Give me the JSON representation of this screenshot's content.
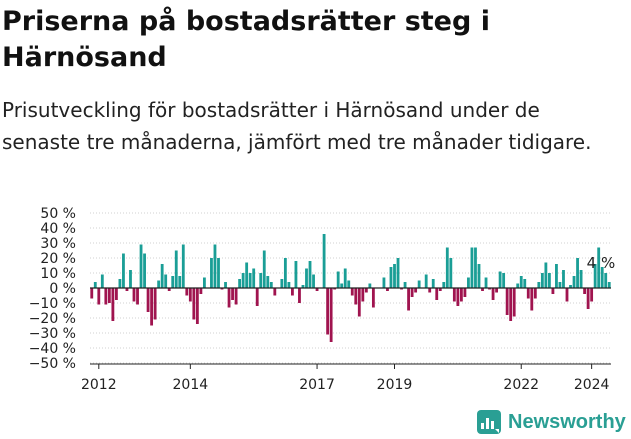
{
  "title": "Priserna på bostadsrätter steg i Härnösand",
  "subtitle": "Prisutveckling för bostadsrätter i Härnösand under de senaste tre månaderna, jämfört med tre månader tidigare.",
  "brand": "Newsworthy",
  "colors": {
    "positive": "#1a9e96",
    "negative": "#a0144f",
    "axis": "#222222",
    "grid": "#d0d0d0"
  },
  "chart_data": {
    "type": "bar",
    "ylim": [
      -50,
      50
    ],
    "yticks": [
      -50,
      -40,
      -30,
      -20,
      -10,
      0,
      10,
      20,
      30,
      40,
      50
    ],
    "yticklabels": [
      "−50 %",
      "−40 %",
      "−30 %",
      "−20 %",
      "−10 %",
      "0 %",
      "10 %",
      "20 %",
      "30 %",
      "40 %",
      "50 %"
    ],
    "xticklabels": [
      "2012",
      "2014",
      "2017",
      "2019",
      "2022",
      "2024"
    ],
    "xtick_index": [
      2,
      28,
      64,
      86,
      122,
      142
    ],
    "last_label": "4 %",
    "x_start": "2011-11",
    "x_end": "2024-11",
    "values": [
      -7,
      4,
      -11,
      9,
      -11,
      -10,
      -22,
      -8,
      6,
      23,
      -2,
      12,
      -9,
      -11,
      29,
      23,
      -16,
      -25,
      -21,
      5,
      16,
      9,
      -2,
      8,
      25,
      8,
      29,
      -5,
      -9,
      -21,
      -24,
      -4,
      7,
      0,
      20,
      29,
      20,
      -1,
      4,
      -13,
      -8,
      -11,
      6,
      10,
      17,
      10,
      13,
      -12,
      10,
      25,
      8,
      4,
      -5,
      0,
      6,
      20,
      4,
      -5,
      18,
      -10,
      2,
      13,
      18,
      9,
      -2,
      0,
      36,
      -31,
      -36,
      -1,
      11,
      3,
      13,
      5,
      -5,
      -11,
      -19,
      -9,
      -3,
      3,
      -13,
      0,
      0,
      7,
      -2,
      14,
      16,
      20,
      -1,
      4,
      -15,
      -6,
      -3,
      5,
      0,
      9,
      -3,
      6,
      -8,
      -2,
      4,
      27,
      20,
      -9,
      -12,
      -9,
      -6,
      7,
      27,
      27,
      16,
      -2,
      7,
      -1,
      -8,
      -3,
      11,
      10,
      -18,
      -22,
      -19,
      3,
      8,
      6,
      -7,
      -15,
      -7,
      4,
      10,
      17,
      10,
      -4,
      16,
      4,
      12,
      -9,
      2,
      8,
      20,
      12,
      -4,
      -14,
      -9,
      16,
      27,
      14,
      10,
      4
    ]
  }
}
